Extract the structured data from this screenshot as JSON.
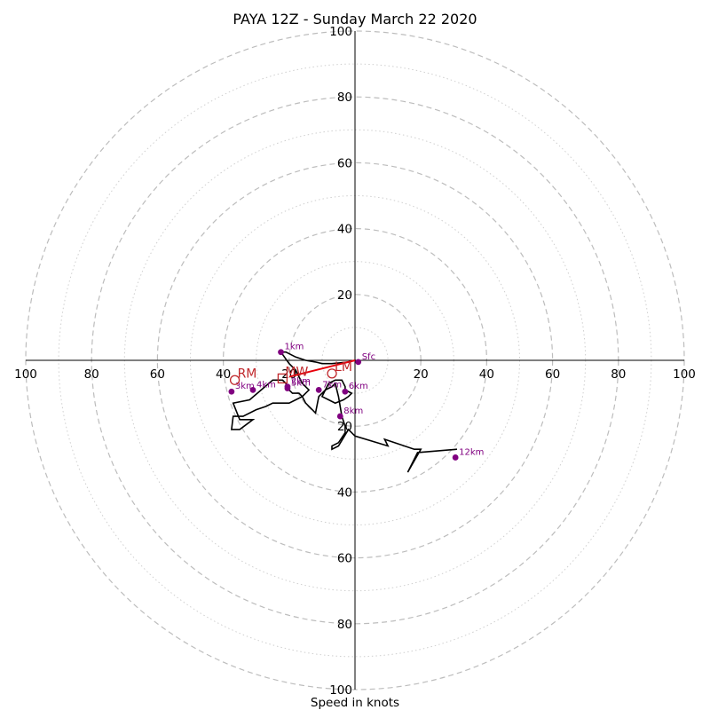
{
  "chart_data": {
    "type": "hodograph",
    "title": "PAYA 12Z - Sunday March 22 2020",
    "xlabel": "Speed in knots",
    "range_knots": 100,
    "ring_major_knots": [
      20,
      40,
      60,
      80,
      100
    ],
    "ring_minor_knots": [
      10,
      30,
      50,
      70,
      90
    ],
    "tick_labels": {
      "left": [
        "100",
        "80",
        "60",
        "40",
        "20"
      ],
      "right": [
        "20",
        "40",
        "60",
        "80",
        "100"
      ],
      "up": [
        "20",
        "40",
        "60",
        "80",
        "100"
      ],
      "down": [
        "20",
        "40",
        "60",
        "80",
        "100"
      ]
    },
    "grid": true,
    "colors": {
      "hodograph_line": "#000000",
      "height_markers": "#800080",
      "mean_wind_shear": "#e8000b",
      "storm_motion": "#c0282c",
      "axes": "#000000",
      "rings": "#bdbdbd"
    },
    "hodograph": {
      "u": [
        0,
        -2,
        -7,
        -10,
        -12,
        -15,
        -18,
        -21,
        -22.5,
        -20,
        -18,
        -17,
        -16,
        -14,
        -15,
        -16,
        -18,
        -20,
        -21,
        -25,
        -27,
        -30,
        -34,
        -37,
        -37.5,
        -35,
        -31,
        -35,
        -37,
        -32,
        -25,
        -22,
        -21,
        -20,
        -19,
        -17,
        -16,
        -15.5,
        -15,
        -14,
        -13,
        -12,
        -11,
        -9,
        -8,
        -6,
        -4,
        -3,
        -3,
        -1,
        -2,
        -3.5,
        -6,
        -8,
        -10,
        -9,
        -7,
        -6,
        -5,
        -4,
        -3,
        -3,
        -5,
        -7,
        -7,
        -5,
        -2,
        0,
        10,
        9,
        18,
        20,
        16,
        19,
        31
      ],
      "v": [
        0,
        -0.5,
        -1,
        -1,
        -0.5,
        0,
        1,
        2.5,
        2.5,
        -1,
        -3,
        -5,
        -7,
        -9,
        -10,
        -11,
        -12,
        -13,
        -13,
        -13,
        -14,
        -15,
        -17,
        -17,
        -21,
        -21,
        -18,
        -18,
        -13,
        -12,
        -6,
        -6,
        -7,
        -9,
        -10,
        -10,
        -11,
        -12,
        -13,
        -14,
        -15,
        -16,
        -11,
        -9,
        -7,
        -6,
        -6,
        -8,
        -9,
        -10,
        -11,
        -12,
        -13,
        -12,
        -11,
        -9,
        -8,
        -7,
        -11,
        -17,
        -20,
        -22,
        -25,
        -26,
        -27,
        -26,
        -21,
        -23,
        -26,
        -24,
        -27,
        -27,
        -34,
        -28,
        -27
      ]
    },
    "height_markers": [
      {
        "label": "Sfc",
        "u": 1,
        "v": -0.5
      },
      {
        "label": "1km",
        "u": -22.5,
        "v": 2.5
      },
      {
        "label": "2km",
        "u": -20.5,
        "v": -8
      },
      {
        "label": "3km",
        "u": -37.5,
        "v": -9.5
      },
      {
        "label": "4km",
        "u": -31,
        "v": -9
      },
      {
        "label": "5km",
        "u": -20.5,
        "v": -8.5
      },
      {
        "label": "6km",
        "u": -3,
        "v": -9.5
      },
      {
        "label": "7km",
        "u": -11,
        "v": -9
      },
      {
        "label": "8km",
        "u": -4.5,
        "v": -17
      },
      {
        "label": "12km",
        "u": 30.5,
        "v": -29.5
      }
    ],
    "mean_wind_shear_line": {
      "u": [
        0,
        -20
      ],
      "v": [
        0,
        -5
      ]
    },
    "storm_motions": [
      {
        "label": "RM",
        "u": -36.5,
        "v": -6,
        "marker": "circle"
      },
      {
        "label": "LM",
        "u": -7,
        "v": -4,
        "marker": "circle"
      },
      {
        "label": "MW",
        "u": -22,
        "v": -5.5,
        "marker": "square"
      }
    ]
  }
}
